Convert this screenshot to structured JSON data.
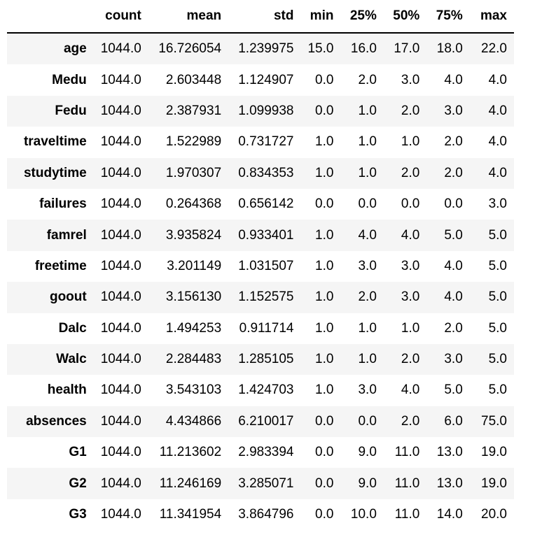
{
  "table": {
    "index_header": "",
    "columns": [
      "count",
      "mean",
      "std",
      "min",
      "25%",
      "50%",
      "75%",
      "max"
    ],
    "rows": [
      {
        "label": "age",
        "cells": [
          "1044.0",
          "16.726054",
          "1.239975",
          "15.0",
          "16.0",
          "17.0",
          "18.0",
          "22.0"
        ]
      },
      {
        "label": "Medu",
        "cells": [
          "1044.0",
          "2.603448",
          "1.124907",
          "0.0",
          "2.0",
          "3.0",
          "4.0",
          "4.0"
        ]
      },
      {
        "label": "Fedu",
        "cells": [
          "1044.0",
          "2.387931",
          "1.099938",
          "0.0",
          "1.0",
          "2.0",
          "3.0",
          "4.0"
        ]
      },
      {
        "label": "traveltime",
        "cells": [
          "1044.0",
          "1.522989",
          "0.731727",
          "1.0",
          "1.0",
          "1.0",
          "2.0",
          "4.0"
        ]
      },
      {
        "label": "studytime",
        "cells": [
          "1044.0",
          "1.970307",
          "0.834353",
          "1.0",
          "1.0",
          "2.0",
          "2.0",
          "4.0"
        ]
      },
      {
        "label": "failures",
        "cells": [
          "1044.0",
          "0.264368",
          "0.656142",
          "0.0",
          "0.0",
          "0.0",
          "0.0",
          "3.0"
        ]
      },
      {
        "label": "famrel",
        "cells": [
          "1044.0",
          "3.935824",
          "0.933401",
          "1.0",
          "4.0",
          "4.0",
          "5.0",
          "5.0"
        ]
      },
      {
        "label": "freetime",
        "cells": [
          "1044.0",
          "3.201149",
          "1.031507",
          "1.0",
          "3.0",
          "3.0",
          "4.0",
          "5.0"
        ]
      },
      {
        "label": "goout",
        "cells": [
          "1044.0",
          "3.156130",
          "1.152575",
          "1.0",
          "2.0",
          "3.0",
          "4.0",
          "5.0"
        ]
      },
      {
        "label": "Dalc",
        "cells": [
          "1044.0",
          "1.494253",
          "0.911714",
          "1.0",
          "1.0",
          "1.0",
          "2.0",
          "5.0"
        ]
      },
      {
        "label": "Walc",
        "cells": [
          "1044.0",
          "2.284483",
          "1.285105",
          "1.0",
          "1.0",
          "2.0",
          "3.0",
          "5.0"
        ]
      },
      {
        "label": "health",
        "cells": [
          "1044.0",
          "3.543103",
          "1.424703",
          "1.0",
          "3.0",
          "4.0",
          "5.0",
          "5.0"
        ]
      },
      {
        "label": "absences",
        "cells": [
          "1044.0",
          "4.434866",
          "6.210017",
          "0.0",
          "0.0",
          "2.0",
          "6.0",
          "75.0"
        ]
      },
      {
        "label": "G1",
        "cells": [
          "1044.0",
          "11.213602",
          "2.983394",
          "0.0",
          "9.0",
          "11.0",
          "13.0",
          "19.0"
        ]
      },
      {
        "label": "G2",
        "cells": [
          "1044.0",
          "11.246169",
          "3.285071",
          "0.0",
          "9.0",
          "11.0",
          "13.0",
          "19.0"
        ]
      },
      {
        "label": "G3",
        "cells": [
          "1044.0",
          "11.341954",
          "3.864796",
          "0.0",
          "10.0",
          "11.0",
          "14.0",
          "20.0"
        ]
      }
    ]
  },
  "colors": {
    "striped_row": "#f5f5f5",
    "header_rule": "#000000",
    "text": "#000000",
    "background": "#ffffff"
  }
}
